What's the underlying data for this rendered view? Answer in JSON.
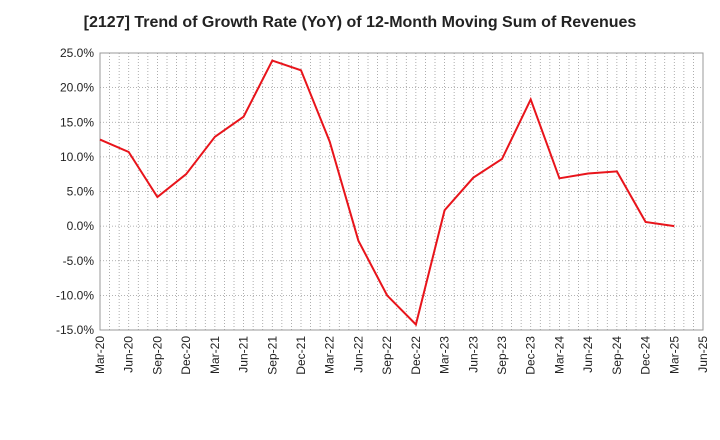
{
  "chart_data": {
    "type": "line",
    "title": "[2127]  Trend of Growth Rate (YoY) of 12-Month Moving Sum of Revenues",
    "xlabel": "",
    "ylabel": "",
    "ylim": [
      -15,
      25
    ],
    "yticks": [
      25,
      20,
      15,
      10,
      5,
      0,
      -5,
      -10,
      -15
    ],
    "ytick_labels": [
      "25.0%",
      "20.0%",
      "15.0%",
      "10.0%",
      "5.0%",
      "0.0%",
      "-5.0%",
      "-10.0%",
      "-15.0%"
    ],
    "xtick_labels": [
      "Mar-20",
      "Jun-20",
      "Sep-20",
      "Dec-20",
      "Mar-21",
      "Jun-21",
      "Sep-21",
      "Dec-21",
      "Mar-22",
      "Jun-22",
      "Sep-22",
      "Dec-22",
      "Mar-23",
      "Jun-23",
      "Sep-23",
      "Dec-23",
      "Mar-24",
      "Jun-24",
      "Sep-24",
      "Dec-24",
      "Mar-25",
      "Jun-25"
    ],
    "grid": true,
    "grid_style": "dotted",
    "series": [
      {
        "color": "#e8141b",
        "x": [
          "Mar-20",
          "Jun-20",
          "Sep-20",
          "Dec-20",
          "Mar-21",
          "Jun-21",
          "Sep-21",
          "Dec-21",
          "Mar-22",
          "Jun-22",
          "Sep-22",
          "Dec-22",
          "Mar-23",
          "Jun-23",
          "Sep-23",
          "Dec-23",
          "Mar-24",
          "Jun-24",
          "Sep-24",
          "Dec-24",
          "Mar-25"
        ],
        "values": [
          12.5,
          10.7,
          4.2,
          7.5,
          12.9,
          15.8,
          23.9,
          22.5,
          12.2,
          -2.1,
          -10.0,
          -14.2,
          2.3,
          7.0,
          9.7,
          18.3,
          6.9,
          7.6,
          7.9,
          0.6,
          0.0
        ]
      }
    ]
  }
}
